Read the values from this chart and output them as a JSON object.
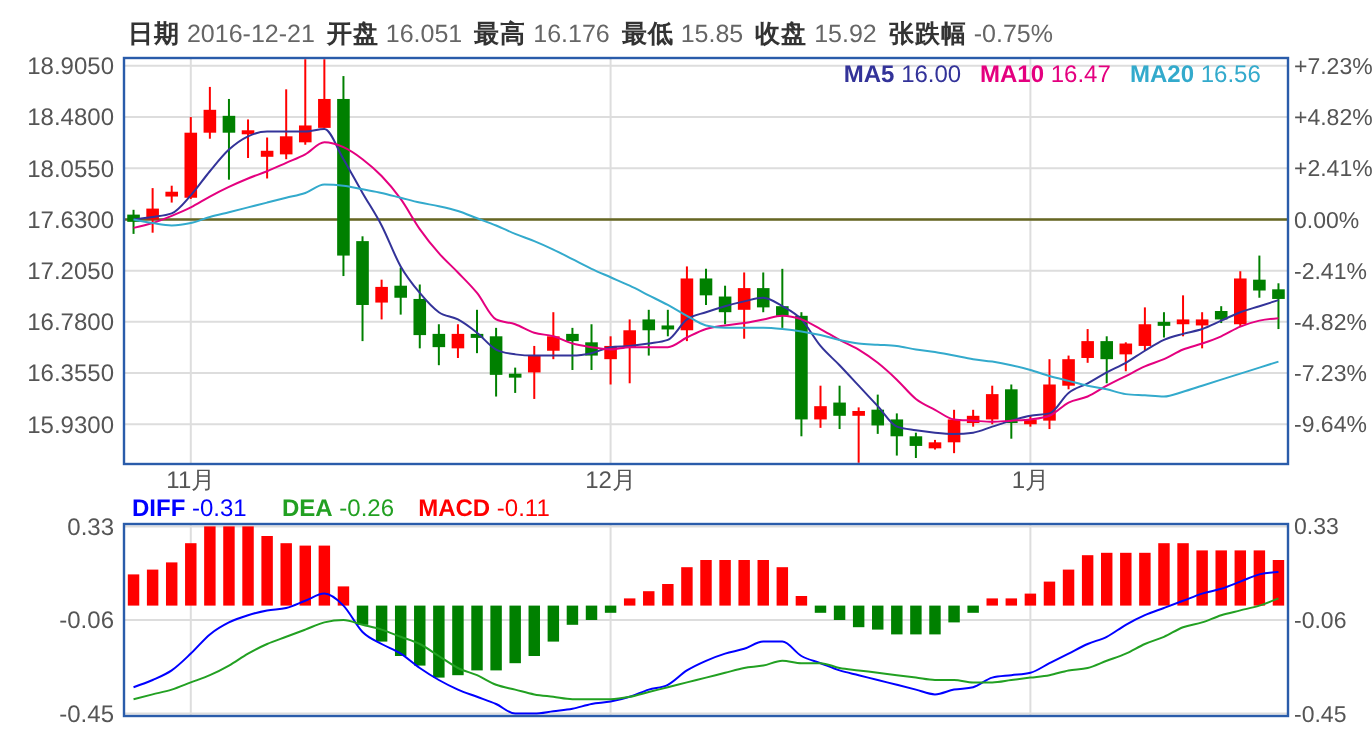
{
  "chart_data": [
    {
      "type": "candlestick",
      "annotations": [
        "日期 2016-12-21",
        "开盘 16.051",
        "最高 16.176",
        "最低 15.85",
        "收盘 15.92",
        "张跌幅 -0.75%"
      ],
      "categories": [
        null,
        null,
        null,
        "11月",
        null,
        null,
        null,
        null,
        null,
        null,
        null,
        null,
        null,
        null,
        null,
        null,
        null,
        null,
        null,
        null,
        null,
        null,
        null,
        null,
        null,
        "12月",
        null,
        null,
        null,
        null,
        null,
        null,
        null,
        null,
        null,
        null,
        null,
        null,
        null,
        null,
        null,
        null,
        null,
        null,
        null,
        null,
        null,
        "1月",
        null,
        null,
        null,
        null,
        null,
        null,
        null,
        null,
        null,
        null,
        null,
        null,
        null
      ],
      "ohlc": [
        [
          17.67,
          17.71,
          17.51,
          17.61
        ],
        [
          17.63,
          17.89,
          17.52,
          17.72
        ],
        [
          17.82,
          17.91,
          17.77,
          17.86
        ],
        [
          17.81,
          18.48,
          17.8,
          18.35
        ],
        [
          18.35,
          18.73,
          18.3,
          18.54
        ],
        [
          18.49,
          18.63,
          17.96,
          18.35
        ],
        [
          18.35,
          18.46,
          18.14,
          18.37
        ],
        [
          18.15,
          18.31,
          17.97,
          18.2
        ],
        [
          18.17,
          18.71,
          18.13,
          18.32
        ],
        [
          18.27,
          18.96,
          18.25,
          18.41
        ],
        [
          18.39,
          18.96,
          18.39,
          18.63
        ],
        [
          18.63,
          18.82,
          17.16,
          17.33
        ],
        [
          17.45,
          17.49,
          16.62,
          16.92
        ],
        [
          16.94,
          17.13,
          16.8,
          17.07
        ],
        [
          17.08,
          17.23,
          16.84,
          16.98
        ],
        [
          16.97,
          17.09,
          16.56,
          16.67
        ],
        [
          16.68,
          16.76,
          16.42,
          16.57
        ],
        [
          16.56,
          16.76,
          16.48,
          16.68
        ],
        [
          16.68,
          16.88,
          16.52,
          16.65
        ],
        [
          16.66,
          16.73,
          16.16,
          16.34
        ],
        [
          16.35,
          16.4,
          16.19,
          16.33
        ],
        [
          16.36,
          16.58,
          16.14,
          16.5
        ],
        [
          16.54,
          16.86,
          16.47,
          16.66
        ],
        [
          16.68,
          16.73,
          16.38,
          16.62
        ],
        [
          16.61,
          16.76,
          16.38,
          16.5
        ],
        [
          16.47,
          16.66,
          16.26,
          16.58
        ],
        [
          16.57,
          16.8,
          16.27,
          16.71
        ],
        [
          16.8,
          16.88,
          16.5,
          16.71
        ],
        [
          16.75,
          16.88,
          16.66,
          16.72
        ],
        [
          16.71,
          17.24,
          16.62,
          17.14
        ],
        [
          17.14,
          17.22,
          16.92,
          17.0
        ],
        [
          16.99,
          17.08,
          16.76,
          16.86
        ],
        [
          16.88,
          17.19,
          16.64,
          17.06
        ],
        [
          17.06,
          17.19,
          16.86,
          16.9
        ],
        [
          16.91,
          17.22,
          16.73,
          16.83
        ],
        [
          16.83,
          16.86,
          15.83,
          15.97
        ],
        [
          15.97,
          16.25,
          15.9,
          16.08
        ],
        [
          16.11,
          16.25,
          15.89,
          16.0
        ],
        [
          16.0,
          16.07,
          15.61,
          16.04
        ],
        [
          16.051,
          16.176,
          15.85,
          15.92
        ],
        [
          15.97,
          16.02,
          15.67,
          15.83
        ],
        [
          15.83,
          15.86,
          15.65,
          15.75
        ],
        [
          15.73,
          15.8,
          15.72,
          15.78
        ],
        [
          15.78,
          16.05,
          15.69,
          15.97
        ],
        [
          15.94,
          16.05,
          15.91,
          16.0
        ],
        [
          15.97,
          16.25,
          15.93,
          16.18
        ],
        [
          16.22,
          16.26,
          15.81,
          15.94
        ],
        [
          15.93,
          16.0,
          15.91,
          15.97
        ],
        [
          15.96,
          16.47,
          15.89,
          16.26
        ],
        [
          16.25,
          16.5,
          16.22,
          16.47
        ],
        [
          16.48,
          16.72,
          16.44,
          16.62
        ],
        [
          16.62,
          16.66,
          16.27,
          16.47
        ],
        [
          16.51,
          16.61,
          16.37,
          16.6
        ],
        [
          16.58,
          16.9,
          16.54,
          16.76
        ],
        [
          16.78,
          16.86,
          16.65,
          16.76
        ],
        [
          16.76,
          17.0,
          16.66,
          16.8
        ],
        [
          16.75,
          16.86,
          16.56,
          16.8
        ],
        [
          16.87,
          16.91,
          16.77,
          16.8
        ],
        [
          16.76,
          17.2,
          16.74,
          17.14
        ],
        [
          17.13,
          17.33,
          16.98,
          17.04
        ],
        [
          17.05,
          17.1,
          16.72,
          16.97
        ]
      ],
      "series": [
        {
          "name": "MA5 16.00",
          "type": "line",
          "color": "#333399",
          "values": [
            17.63,
            17.65,
            17.68,
            17.83,
            18.03,
            18.21,
            18.32,
            18.36,
            18.36,
            18.36,
            18.38,
            18.13,
            17.85,
            17.58,
            17.24,
            17.02,
            16.86,
            16.8,
            16.69,
            16.55,
            16.51,
            16.5,
            16.5,
            16.5,
            16.52,
            16.57,
            16.58,
            16.6,
            16.63,
            16.8,
            16.86,
            16.91,
            16.95,
            16.98,
            16.91,
            16.8,
            16.58,
            16.42,
            16.25,
            16.08,
            15.91,
            15.88,
            15.86,
            15.85,
            15.86,
            15.91,
            15.96,
            16.0,
            16.02,
            16.19,
            16.27,
            16.36,
            16.44,
            16.54,
            16.63,
            16.68,
            16.72,
            16.79,
            16.86,
            16.91,
            16.96
          ]
        },
        {
          "name": "MA10 16.47",
          "type": "line",
          "color": "#e4007f",
          "values": [
            17.56,
            17.6,
            17.66,
            17.73,
            17.82,
            17.9,
            17.97,
            18.03,
            18.1,
            18.17,
            18.27,
            18.23,
            18.13,
            17.99,
            17.8,
            17.55,
            17.35,
            17.19,
            17.02,
            16.8,
            16.76,
            16.69,
            16.66,
            16.6,
            16.57,
            16.55,
            16.57,
            16.57,
            16.57,
            16.65,
            16.72,
            16.75,
            16.77,
            16.8,
            16.83,
            16.8,
            16.72,
            16.63,
            16.55,
            16.44,
            16.3,
            16.14,
            16.05,
            15.97,
            15.96,
            15.95,
            15.96,
            15.97,
            16.0,
            16.11,
            16.16,
            16.25,
            16.33,
            16.41,
            16.47,
            16.55,
            16.6,
            16.66,
            16.74,
            16.79,
            16.81
          ]
        },
        {
          "name": "MA20 16.56",
          "type": "line",
          "color": "#33aacc",
          "values": [
            17.63,
            17.6,
            17.58,
            17.6,
            17.65,
            17.69,
            17.73,
            17.77,
            17.81,
            17.85,
            17.92,
            17.91,
            17.88,
            17.85,
            17.81,
            17.77,
            17.74,
            17.7,
            17.64,
            17.58,
            17.51,
            17.45,
            17.38,
            17.3,
            17.22,
            17.15,
            17.08,
            17.0,
            16.92,
            16.83,
            16.75,
            16.73,
            16.73,
            16.73,
            16.72,
            16.7,
            16.67,
            16.63,
            16.6,
            16.59,
            16.58,
            16.55,
            16.53,
            16.5,
            16.47,
            16.45,
            16.42,
            16.38,
            16.33,
            16.29,
            16.25,
            16.22,
            16.18,
            16.17,
            16.16,
            16.2,
            16.25,
            16.3,
            16.35,
            16.4,
            16.45
          ]
        }
      ],
      "ylim": [
        15.6,
        18.97
      ],
      "yticks": [
        {
          "value": 18.905,
          "label": "18.9050"
        },
        {
          "value": 18.48,
          "label": "18.4800"
        },
        {
          "value": 18.055,
          "label": "18.0550"
        },
        {
          "value": 17.63,
          "label": "17.6300"
        },
        {
          "value": 17.205,
          "label": "17.2050"
        },
        {
          "value": 16.78,
          "label": "16.7800"
        },
        {
          "value": 16.355,
          "label": "16.3550"
        },
        {
          "value": 15.93,
          "label": "15.9300"
        }
      ],
      "y2lim": [
        -11.51,
        7.6
      ],
      "y2ticks": [
        {
          "value": 7.23,
          "label": "+7.23%"
        },
        {
          "value": 4.82,
          "label": "+4.82%"
        },
        {
          "value": 2.41,
          "label": "+2.41%"
        },
        {
          "value": 0,
          "label": "0.00%"
        },
        {
          "value": -2.41,
          "label": "-2.41%"
        },
        {
          "value": -4.82,
          "label": "-4.82%"
        },
        {
          "value": -7.23,
          "label": "-7.23%"
        },
        {
          "value": -9.64,
          "label": "-9.64%"
        }
      ],
      "ref_lines": [
        {
          "axis": "y",
          "value": 17.63,
          "color": "#666622"
        }
      ],
      "grid": true,
      "legend": "top right"
    },
    {
      "type": "bar",
      "categories": [
        null,
        null,
        null,
        null,
        null,
        null,
        null,
        null,
        null,
        null,
        null,
        null,
        null,
        null,
        null,
        null,
        null,
        null,
        null,
        null,
        null,
        null,
        null,
        null,
        null,
        null,
        null,
        null,
        null,
        null,
        null,
        null,
        null,
        null,
        null,
        null,
        null,
        null,
        null,
        null,
        null,
        null,
        null,
        null,
        null,
        null,
        null,
        null,
        null,
        null,
        null,
        null,
        null,
        null,
        null,
        null,
        null,
        null,
        null,
        null,
        null
      ],
      "series": [
        {
          "name": "DIFF -0.31",
          "type": "line",
          "color": "#0000ff",
          "values": [
            -0.34,
            -0.31,
            -0.27,
            -0.2,
            -0.12,
            -0.07,
            -0.04,
            -0.02,
            -0.01,
            0.02,
            0.05,
            0.0,
            -0.11,
            -0.16,
            -0.2,
            -0.26,
            -0.31,
            -0.35,
            -0.38,
            -0.41,
            -0.45,
            -0.45,
            -0.44,
            -0.43,
            -0.41,
            -0.4,
            -0.38,
            -0.35,
            -0.33,
            -0.27,
            -0.23,
            -0.2,
            -0.18,
            -0.15,
            -0.15,
            -0.21,
            -0.24,
            -0.27,
            -0.29,
            -0.31,
            -0.33,
            -0.35,
            -0.37,
            -0.35,
            -0.34,
            -0.3,
            -0.29,
            -0.28,
            -0.24,
            -0.2,
            -0.16,
            -0.13,
            -0.08,
            -0.04,
            -0.01,
            0.02,
            0.05,
            0.07,
            0.1,
            0.13,
            0.14
          ]
        },
        {
          "name": "DEA -0.26",
          "type": "line",
          "color": "#22a022",
          "values": [
            -0.39,
            -0.37,
            -0.35,
            -0.32,
            -0.29,
            -0.25,
            -0.2,
            -0.16,
            -0.13,
            -0.1,
            -0.07,
            -0.06,
            -0.08,
            -0.1,
            -0.13,
            -0.16,
            -0.21,
            -0.26,
            -0.29,
            -0.33,
            -0.35,
            -0.37,
            -0.38,
            -0.39,
            -0.39,
            -0.39,
            -0.38,
            -0.36,
            -0.34,
            -0.32,
            -0.3,
            -0.28,
            -0.26,
            -0.25,
            -0.23,
            -0.24,
            -0.24,
            -0.26,
            -0.27,
            -0.28,
            -0.29,
            -0.3,
            -0.31,
            -0.31,
            -0.32,
            -0.32,
            -0.31,
            -0.3,
            -0.29,
            -0.27,
            -0.26,
            -0.23,
            -0.2,
            -0.16,
            -0.13,
            -0.09,
            -0.07,
            -0.04,
            -0.02,
            0.0,
            0.03
          ]
        },
        {
          "name": "MACD -0.11",
          "type": "bar",
          "color": "#ff0000",
          "values": [
            0.13,
            0.15,
            0.18,
            0.26,
            0.33,
            0.33,
            0.33,
            0.29,
            0.26,
            0.25,
            0.25,
            0.08,
            -0.08,
            -0.15,
            -0.21,
            -0.25,
            -0.3,
            -0.29,
            -0.27,
            -0.27,
            -0.24,
            -0.21,
            -0.15,
            -0.08,
            -0.06,
            -0.03,
            0.03,
            0.06,
            0.09,
            0.16,
            0.19,
            0.19,
            0.19,
            0.19,
            0.16,
            0.04,
            -0.03,
            -0.06,
            -0.09,
            -0.1,
            -0.12,
            -0.12,
            -0.12,
            -0.07,
            -0.03,
            0.03,
            0.03,
            0.05,
            0.1,
            0.15,
            0.21,
            0.22,
            0.22,
            0.22,
            0.26,
            0.26,
            0.23,
            0.23,
            0.23,
            0.23,
            0.19
          ],
          "colors": [
            "#ff0000",
            "#ff0000",
            "#ff0000",
            "#ff0000",
            "#ff0000",
            "#ff0000",
            "#ff0000",
            "#ff0000",
            "#ff0000",
            "#ff0000",
            "#ff0000",
            "#ff0000",
            "#008000",
            "#008000",
            "#008000",
            "#008000",
            "#008000",
            "#008000",
            "#008000",
            "#008000",
            "#008000",
            "#008000",
            "#008000",
            "#008000",
            "#008000",
            "#008000",
            "#ff0000",
            "#ff0000",
            "#ff0000",
            "#ff0000",
            "#ff0000",
            "#ff0000",
            "#ff0000",
            "#ff0000",
            "#ff0000",
            "#ff0000",
            "#008000",
            "#008000",
            "#008000",
            "#008000",
            "#008000",
            "#008000",
            "#008000",
            "#008000",
            "#008000",
            "#ff0000",
            "#ff0000",
            "#ff0000",
            "#ff0000",
            "#ff0000",
            "#ff0000",
            "#ff0000",
            "#ff0000",
            "#ff0000",
            "#ff0000",
            "#ff0000",
            "#ff0000",
            "#ff0000",
            "#ff0000",
            "#ff0000",
            "#ff0000"
          ]
        }
      ],
      "ylim": [
        -0.46,
        0.34
      ],
      "yticks": [
        0.33,
        -0.06,
        -0.45
      ],
      "y2lim": [
        -0.46,
        0.34
      ],
      "y2ticks": [
        0.33,
        -0.06,
        -0.45
      ],
      "tick_labels": "y",
      "grid": true,
      "legend": "top left"
    }
  ]
}
